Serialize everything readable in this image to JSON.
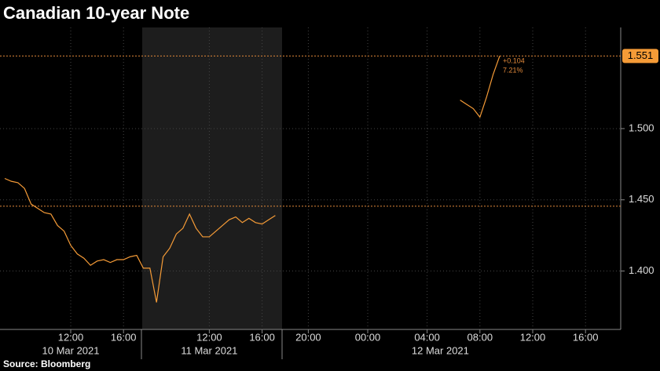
{
  "chart_data": {
    "type": "line",
    "title": "Canadian 10-year Note",
    "source": "Source: Bloomberg",
    "categories": [
      null,
      null,
      null,
      null,
      null,
      null,
      null,
      null,
      null,
      null,
      "12:00",
      null,
      null,
      null,
      null,
      null,
      null,
      null,
      "16:00",
      null,
      null,
      null,
      null,
      null,
      null,
      null,
      null,
      null,
      null,
      null,
      null,
      "12:00",
      null,
      null,
      null,
      null,
      null,
      null,
      null,
      "16:00",
      null,
      null,
      null,
      null,
      null,
      null,
      "20:00",
      null,
      null,
      null,
      null,
      null,
      null,
      null,
      null,
      "00:00",
      null,
      null,
      null,
      null,
      null,
      null,
      null,
      null,
      "04:00",
      null,
      null,
      null,
      null,
      null,
      null,
      null,
      "08:00",
      null,
      null,
      null,
      null,
      null,
      null,
      null,
      "12:00",
      null,
      null,
      null,
      null,
      null,
      null,
      null,
      "16:00",
      null,
      null,
      null,
      null,
      null
    ],
    "date_labels": [
      null,
      null,
      null,
      null,
      null,
      null,
      null,
      null,
      null,
      null,
      "10 Mar 2021",
      null,
      null,
      null,
      null,
      null,
      null,
      null,
      null,
      null,
      null,
      null,
      null,
      null,
      null,
      null,
      null,
      null,
      null,
      null,
      null,
      "11 Mar 2021",
      null,
      null,
      null,
      null,
      null,
      null,
      null,
      null,
      null,
      null,
      null,
      null,
      null,
      null,
      null,
      null,
      null,
      null,
      null,
      null,
      null,
      null,
      null,
      null,
      null,
      null,
      null,
      null,
      null,
      null,
      null,
      null,
      null,
      null,
      "12 Mar 2021",
      null,
      null,
      null,
      null,
      null,
      null,
      null,
      null,
      null,
      null,
      null,
      null,
      null,
      null,
      null,
      null,
      null,
      null,
      null,
      null,
      null,
      null,
      null,
      null,
      null,
      null,
      null
    ],
    "series": [
      {
        "name": "Canadian 10-year Note",
        "color": "#f59b37",
        "values": [
          1.465,
          1.463,
          1.462,
          1.458,
          1.447,
          1.444,
          1.441,
          1.44,
          1.432,
          1.428,
          1.418,
          1.412,
          1.409,
          1.404,
          1.407,
          1.408,
          1.406,
          1.408,
          1.408,
          1.41,
          1.411,
          1.402,
          1.402,
          1.378,
          1.41,
          1.416,
          1.426,
          1.43,
          1.44,
          1.43,
          1.424,
          1.424,
          1.428,
          1.432,
          1.436,
          1.438,
          1.434,
          1.437,
          1.434,
          1.433,
          1.436,
          1.439,
          null,
          null,
          null,
          null,
          null,
          null,
          null,
          null,
          null,
          null,
          null,
          null,
          null,
          null,
          null,
          null,
          null,
          null,
          null,
          null,
          null,
          null,
          null,
          null,
          null,
          null,
          null,
          1.52,
          1.517,
          1.514,
          1.508,
          1.522,
          1.538,
          1.551,
          null,
          null,
          null,
          null,
          null,
          null,
          null,
          null,
          null,
          null,
          null,
          null,
          null,
          null,
          null,
          null,
          null,
          null
        ]
      }
    ],
    "last_value": 1.551,
    "reference_line": 1.4455,
    "annotations": [
      "+0.104",
      "7.21%"
    ],
    "ylim": [
      1.359,
      1.571
    ],
    "yticks": [
      {
        "value": 1.4,
        "label": "1.400"
      },
      {
        "value": 1.45,
        "label": "1.450"
      },
      {
        "value": 1.5,
        "label": "1.500"
      }
    ],
    "grid": true
  }
}
